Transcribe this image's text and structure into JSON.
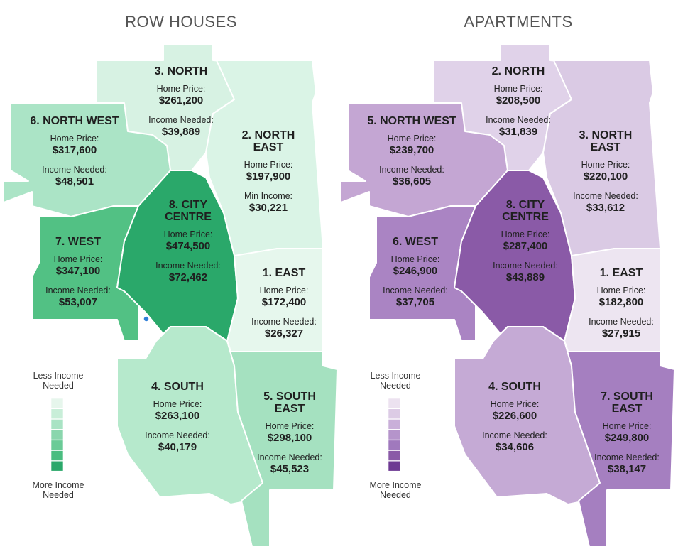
{
  "maps": [
    {
      "title": "ROW HOUSES",
      "regions": [
        {
          "name": "3. NORTH",
          "price_label": "Home Price:",
          "price": "$261,200",
          "income_label": "Income Needed:",
          "income": "$39,889",
          "color": "#d7f2e3"
        },
        {
          "name": "2. NORTH EAST",
          "price_label": "Home Price:",
          "price": "$197,900",
          "income_label": "Min Income:",
          "income": "$30,221",
          "color": "#daf4e6"
        },
        {
          "name": "6. NORTH WEST",
          "price_label": "Home Price:",
          "price": "$317,600",
          "income_label": "Income Needed:",
          "income": "$48,501",
          "color": "#abe4c6"
        },
        {
          "name": "7. WEST",
          "price_label": "Home Price:",
          "price": "$347,100",
          "income_label": "Income Needed:",
          "income": "$53,007",
          "color": "#52c184"
        },
        {
          "name": "8. CITY CENTRE",
          "price_label": "Home Price:",
          "price": "$474,500",
          "income_label": "Income Needed:",
          "income": "$72,462",
          "color": "#2aa86a"
        },
        {
          "name": "1. EAST",
          "price_label": "Home Price:",
          "price": "$172,400",
          "income_label": "Income Needed:",
          "income": "$26,327",
          "color": "#e6f7ed"
        },
        {
          "name": "4. SOUTH",
          "price_label": "Home Price:",
          "price": "$263,100",
          "income_label": "Income Needed:",
          "income": "$40,179",
          "color": "#b6e9cc"
        },
        {
          "name": "5. SOUTH EAST",
          "price_label": "Home Price:",
          "price": "$298,100",
          "income_label": "Income Needed:",
          "income": "$45,523",
          "color": "#a5e1c0"
        }
      ],
      "legend": {
        "top": "Less Income Needed",
        "bottom": "More Income Needed",
        "colors": [
          "#e6f6ec",
          "#c8eed8",
          "#a9e3c4",
          "#8ad6ad",
          "#6acb97",
          "#4abd80",
          "#2aa86a"
        ]
      }
    },
    {
      "title": "APARTMENTS",
      "regions": [
        {
          "name": "2. NORTH",
          "price_label": "Home Price:",
          "price": "$208,500",
          "income_label": "Income Needed:",
          "income": "$31,839",
          "color": "#e0d2e9"
        },
        {
          "name": "3. NORTH EAST",
          "price_label": "Home Price:",
          "price": "$220,100",
          "income_label": "Income Needed:",
          "income": "$33,612",
          "color": "#dacae4"
        },
        {
          "name": "5. NORTH WEST",
          "price_label": "Home Price:",
          "price": "$239,700",
          "income_label": "Income Needed:",
          "income": "$36,605",
          "color": "#c4a6d3"
        },
        {
          "name": "6. WEST",
          "price_label": "Home Price:",
          "price": "$246,900",
          "income_label": "Income Needed:",
          "income": "$37,705",
          "color": "#aa84c3"
        },
        {
          "name": "8. CITY CENTRE",
          "price_label": "Home Price:",
          "price": "$287,400",
          "income_label": "Income Needed:",
          "income": "$43,889",
          "color": "#8a5aa7"
        },
        {
          "name": "1. EAST",
          "price_label": "Home Price:",
          "price": "$182,800",
          "income_label": "Income Needed:",
          "income": "$27,915",
          "color": "#ede5f1"
        },
        {
          "name": "4. SOUTH",
          "price_label": "Home Price:",
          "price": "$226,600",
          "income_label": "Income Needed:",
          "income": "$34,606",
          "color": "#c5aad5"
        },
        {
          "name": "7. SOUTH EAST",
          "price_label": "Home Price:",
          "price": "$249,800",
          "income_label": "Income Needed:",
          "income": "$38,147",
          "color": "#a57fc0"
        }
      ],
      "legend": {
        "top": "Less Income Needed",
        "bottom": "More Income Needed",
        "colors": [
          "#ece2f0",
          "#dccbe5",
          "#c9afd9",
          "#b594cb",
          "#a079bd",
          "#8a5aa7",
          "#6e3a93"
        ]
      }
    }
  ]
}
